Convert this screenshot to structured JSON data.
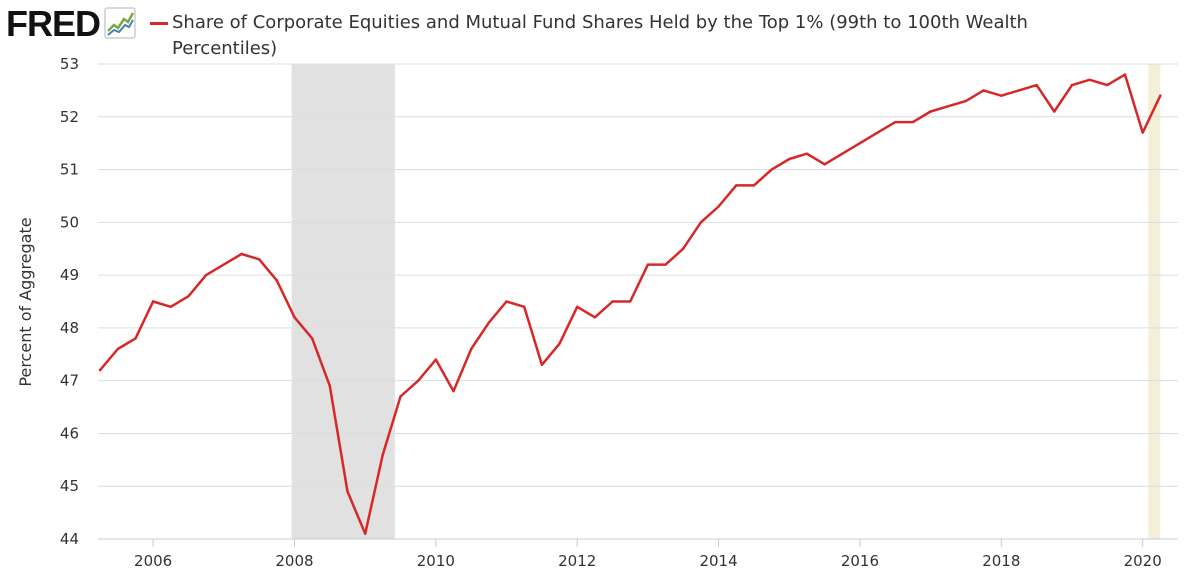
{
  "header": {
    "logo_text": "FRED",
    "logo_icon": "trend-line-icon"
  },
  "colors": {
    "series": "#d62828",
    "recession": "#e1e1e1",
    "highlight": "#f4f0d8",
    "grid": "#d9dde3",
    "text": "#333333"
  },
  "chart_data": {
    "type": "line",
    "title": "Share of Corporate Equities and Mutual Fund Shares Held by the Top 1% (99th to 100th Wealth Percentiles)",
    "xlabel": "",
    "ylabel": "Percent of Aggregate",
    "xlim": [
      2005.22,
      2020.5
    ],
    "ylim": [
      44,
      53
    ],
    "yticks": [
      "44",
      "45",
      "46",
      "47",
      "48",
      "49",
      "50",
      "51",
      "52",
      "53"
    ],
    "xticks": [
      "2006",
      "2008",
      "2010",
      "2012",
      "2014",
      "2016",
      "2018",
      "2020"
    ],
    "grid": true,
    "legend": "top",
    "shaded_periods": [
      {
        "kind": "recession",
        "start": 2007.96,
        "end": 2009.42
      },
      {
        "kind": "highlight",
        "start": 2020.08,
        "end": 2020.25
      }
    ],
    "series": [
      {
        "name": "Share of Corporate Equities and Mutual Fund Shares Held by the Top 1% (99th to 100th Wealth Percentiles)",
        "x": [
          2005.25,
          2005.5,
          2005.75,
          2006.0,
          2006.25,
          2006.5,
          2006.75,
          2007.0,
          2007.25,
          2007.5,
          2007.75,
          2008.0,
          2008.25,
          2008.5,
          2008.75,
          2009.0,
          2009.25,
          2009.5,
          2009.75,
          2010.0,
          2010.25,
          2010.5,
          2010.75,
          2011.0,
          2011.25,
          2011.5,
          2011.75,
          2012.0,
          2012.25,
          2012.5,
          2012.75,
          2013.0,
          2013.25,
          2013.5,
          2013.75,
          2014.0,
          2014.25,
          2014.5,
          2014.75,
          2015.0,
          2015.25,
          2015.5,
          2015.75,
          2016.0,
          2016.25,
          2016.5,
          2016.75,
          2017.0,
          2017.25,
          2017.5,
          2017.75,
          2018.0,
          2018.25,
          2018.5,
          2018.75,
          2019.0,
          2019.25,
          2019.5,
          2019.75,
          2020.0,
          2020.25
        ],
        "values": [
          47.2,
          47.6,
          47.8,
          48.5,
          48.4,
          48.6,
          49.0,
          49.2,
          49.4,
          49.3,
          48.9,
          48.2,
          47.8,
          46.9,
          44.9,
          44.1,
          45.6,
          46.7,
          47.0,
          47.4,
          46.8,
          47.6,
          48.1,
          48.5,
          48.4,
          47.3,
          47.7,
          48.4,
          48.2,
          48.5,
          48.5,
          49.2,
          49.2,
          49.5,
          50.0,
          50.3,
          50.7,
          50.7,
          51.0,
          51.2,
          51.3,
          51.1,
          51.3,
          51.5,
          51.7,
          51.9,
          51.9,
          52.1,
          52.2,
          52.3,
          52.5,
          52.4,
          52.5,
          52.6,
          52.1,
          52.6,
          52.7,
          52.6,
          52.8,
          51.7,
          52.4
        ]
      }
    ]
  }
}
